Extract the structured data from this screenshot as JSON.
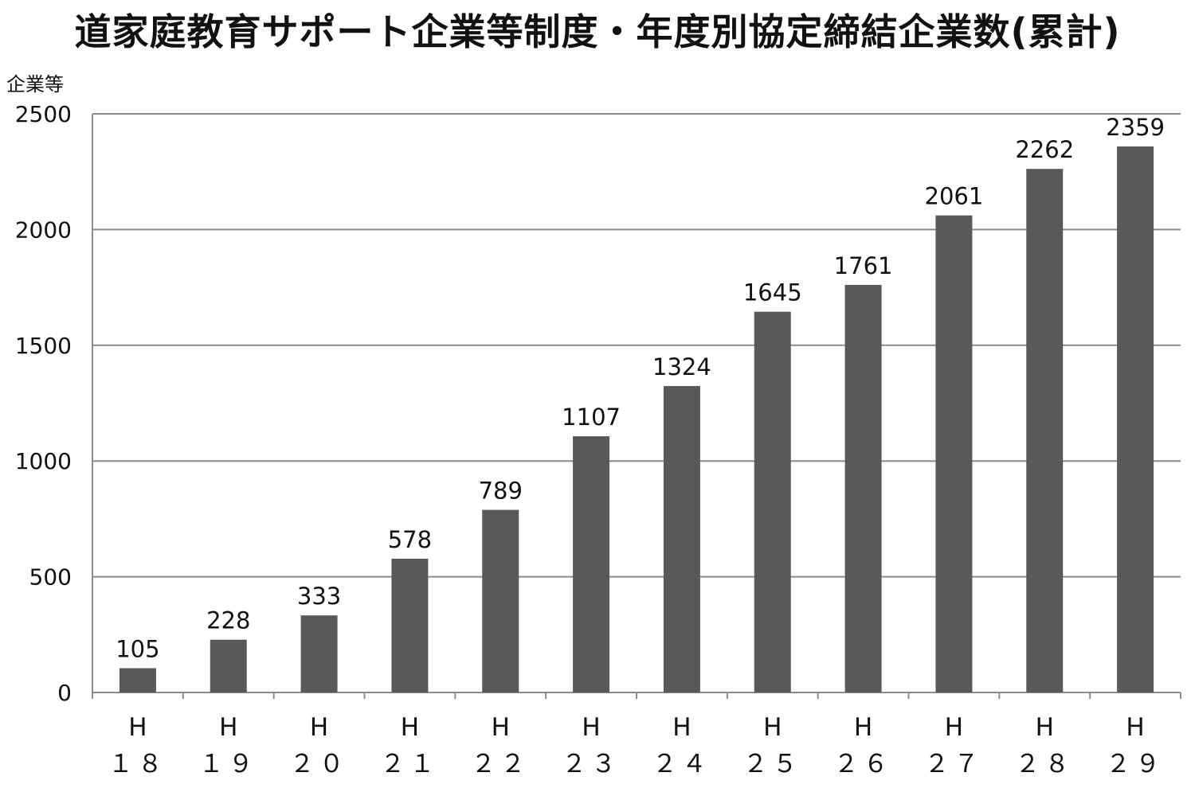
{
  "chart_data": {
    "type": "bar",
    "title": "道家庭教育サポート企業等制度・年度別協定締結企業数(累計)",
    "ylabel": "企業等",
    "xlabel": "",
    "categories": [
      {
        "line1": "H",
        "line2": "１８"
      },
      {
        "line1": "H",
        "line2": "１９"
      },
      {
        "line1": "H",
        "line2": "２０"
      },
      {
        "line1": "H",
        "line2": "２１"
      },
      {
        "line1": "H",
        "line2": "２２"
      },
      {
        "line1": "H",
        "line2": "２３"
      },
      {
        "line1": "H",
        "line2": "２４"
      },
      {
        "line1": "H",
        "line2": "２５"
      },
      {
        "line1": "H",
        "line2": "２６"
      },
      {
        "line1": "H",
        "line2": "２７"
      },
      {
        "line1": "H",
        "line2": "２８"
      },
      {
        "line1": "H",
        "line2": "２９"
      }
    ],
    "values": [
      105,
      228,
      333,
      578,
      789,
      1107,
      1324,
      1645,
      1761,
      2061,
      2262,
      2359
    ],
    "ylim": [
      0,
      2500
    ],
    "yticks": [
      0,
      500,
      1000,
      1500,
      2000,
      2500
    ],
    "grid": true,
    "legend": "none",
    "colors": {
      "bar": "#595959",
      "grid": "#8c8c8c",
      "axis": "#8c8c8c"
    }
  }
}
